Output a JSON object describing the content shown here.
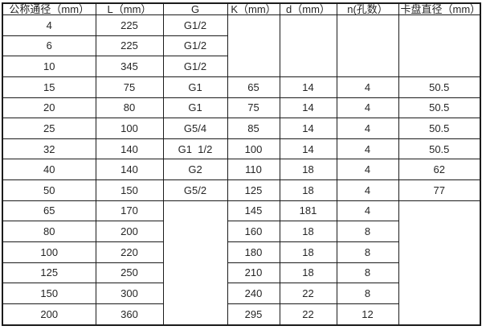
{
  "table": {
    "columns": [
      "公称通径（mm）",
      "L（mm）",
      "G",
      "K（mm）",
      "d（mm）",
      "n(孔数）",
      "卡盘直径（mm）"
    ],
    "rows": [
      [
        {
          "v": "4"
        },
        {
          "v": "225"
        },
        {
          "v": "G1/2"
        },
        {
          "v": "",
          "rs": 3
        },
        {
          "v": "",
          "rs": 3
        },
        {
          "v": "",
          "rs": 3
        },
        {
          "v": "",
          "rs": 3
        }
      ],
      [
        {
          "v": "6"
        },
        {
          "v": "225"
        },
        {
          "v": "G1/2"
        }
      ],
      [
        {
          "v": "10"
        },
        {
          "v": "345"
        },
        {
          "v": "G1/2"
        }
      ],
      [
        {
          "v": "15"
        },
        {
          "v": "75"
        },
        {
          "v": "G1"
        },
        {
          "v": "65"
        },
        {
          "v": "14"
        },
        {
          "v": "4"
        },
        {
          "v": "50.5"
        }
      ],
      [
        {
          "v": "20"
        },
        {
          "v": "80"
        },
        {
          "v": "G1"
        },
        {
          "v": "75"
        },
        {
          "v": "14"
        },
        {
          "v": "4"
        },
        {
          "v": "50.5"
        }
      ],
      [
        {
          "v": "25"
        },
        {
          "v": "100"
        },
        {
          "v": "G5/4"
        },
        {
          "v": "85"
        },
        {
          "v": "14"
        },
        {
          "v": "4"
        },
        {
          "v": "50.5"
        }
      ],
      [
        {
          "v": "32"
        },
        {
          "v": "140"
        },
        {
          "v": "G1  1/2"
        },
        {
          "v": "100"
        },
        {
          "v": "14"
        },
        {
          "v": "4"
        },
        {
          "v": "50.5"
        }
      ],
      [
        {
          "v": "40"
        },
        {
          "v": "140"
        },
        {
          "v": "G2"
        },
        {
          "v": "110"
        },
        {
          "v": "18"
        },
        {
          "v": "4"
        },
        {
          "v": "62"
        }
      ],
      [
        {
          "v": "50"
        },
        {
          "v": "150"
        },
        {
          "v": "G5/2"
        },
        {
          "v": "125"
        },
        {
          "v": "18"
        },
        {
          "v": "4"
        },
        {
          "v": "77"
        }
      ],
      [
        {
          "v": "65"
        },
        {
          "v": "170"
        },
        {
          "v": "",
          "rs": 6
        },
        {
          "v": "145"
        },
        {
          "v": "181"
        },
        {
          "v": "4"
        },
        {
          "v": "",
          "rs": 6
        }
      ],
      [
        {
          "v": "80"
        },
        {
          "v": "200"
        },
        {
          "v": "160"
        },
        {
          "v": "18"
        },
        {
          "v": "8"
        }
      ],
      [
        {
          "v": "100"
        },
        {
          "v": "220"
        },
        {
          "v": "180"
        },
        {
          "v": "18"
        },
        {
          "v": "8"
        }
      ],
      [
        {
          "v": "125"
        },
        {
          "v": "250"
        },
        {
          "v": "210"
        },
        {
          "v": "18"
        },
        {
          "v": "8"
        }
      ],
      [
        {
          "v": "150"
        },
        {
          "v": "300"
        },
        {
          "v": "240"
        },
        {
          "v": "22"
        },
        {
          "v": "8"
        }
      ],
      [
        {
          "v": "200"
        },
        {
          "v": "360"
        },
        {
          "v": "295"
        },
        {
          "v": "22"
        },
        {
          "v": "12"
        }
      ]
    ]
  },
  "chart_data": {
    "type": "table",
    "title": "",
    "columns": [
      "公称通径（mm）",
      "L（mm）",
      "G",
      "K（mm）",
      "d（mm）",
      "n(孔数）",
      "卡盘直径（mm）"
    ],
    "rows": [
      [
        "4",
        "225",
        "G1/2",
        "",
        "",
        "",
        ""
      ],
      [
        "6",
        "225",
        "G1/2",
        "",
        "",
        "",
        ""
      ],
      [
        "10",
        "345",
        "G1/2",
        "",
        "",
        "",
        ""
      ],
      [
        "15",
        "75",
        "G1",
        "65",
        "14",
        "4",
        "50.5"
      ],
      [
        "20",
        "80",
        "G1",
        "75",
        "14",
        "4",
        "50.5"
      ],
      [
        "25",
        "100",
        "G5/4",
        "85",
        "14",
        "4",
        "50.5"
      ],
      [
        "32",
        "140",
        "G1  1/2",
        "100",
        "14",
        "4",
        "50.5"
      ],
      [
        "40",
        "140",
        "G2",
        "110",
        "18",
        "4",
        "62"
      ],
      [
        "50",
        "150",
        "G5/2",
        "125",
        "18",
        "4",
        "77"
      ],
      [
        "65",
        "170",
        "",
        "145",
        "181",
        "4",
        ""
      ],
      [
        "80",
        "200",
        "",
        "160",
        "18",
        "8",
        ""
      ],
      [
        "100",
        "220",
        "",
        "180",
        "18",
        "8",
        ""
      ],
      [
        "125",
        "250",
        "",
        "210",
        "18",
        "8",
        ""
      ],
      [
        "150",
        "300",
        "",
        "240",
        "22",
        "8",
        ""
      ],
      [
        "200",
        "360",
        "",
        "295",
        "22",
        "12",
        ""
      ]
    ],
    "layout": {
      "grid": true,
      "merged_cells": "K/d/n/卡盘直径 empty merged for first 3 rows; G and 卡盘直径 empty merged for last 6 rows"
    }
  },
  "colors": {
    "border": "#1b1b1b",
    "background": "#ffffff",
    "text": "#262626"
  }
}
